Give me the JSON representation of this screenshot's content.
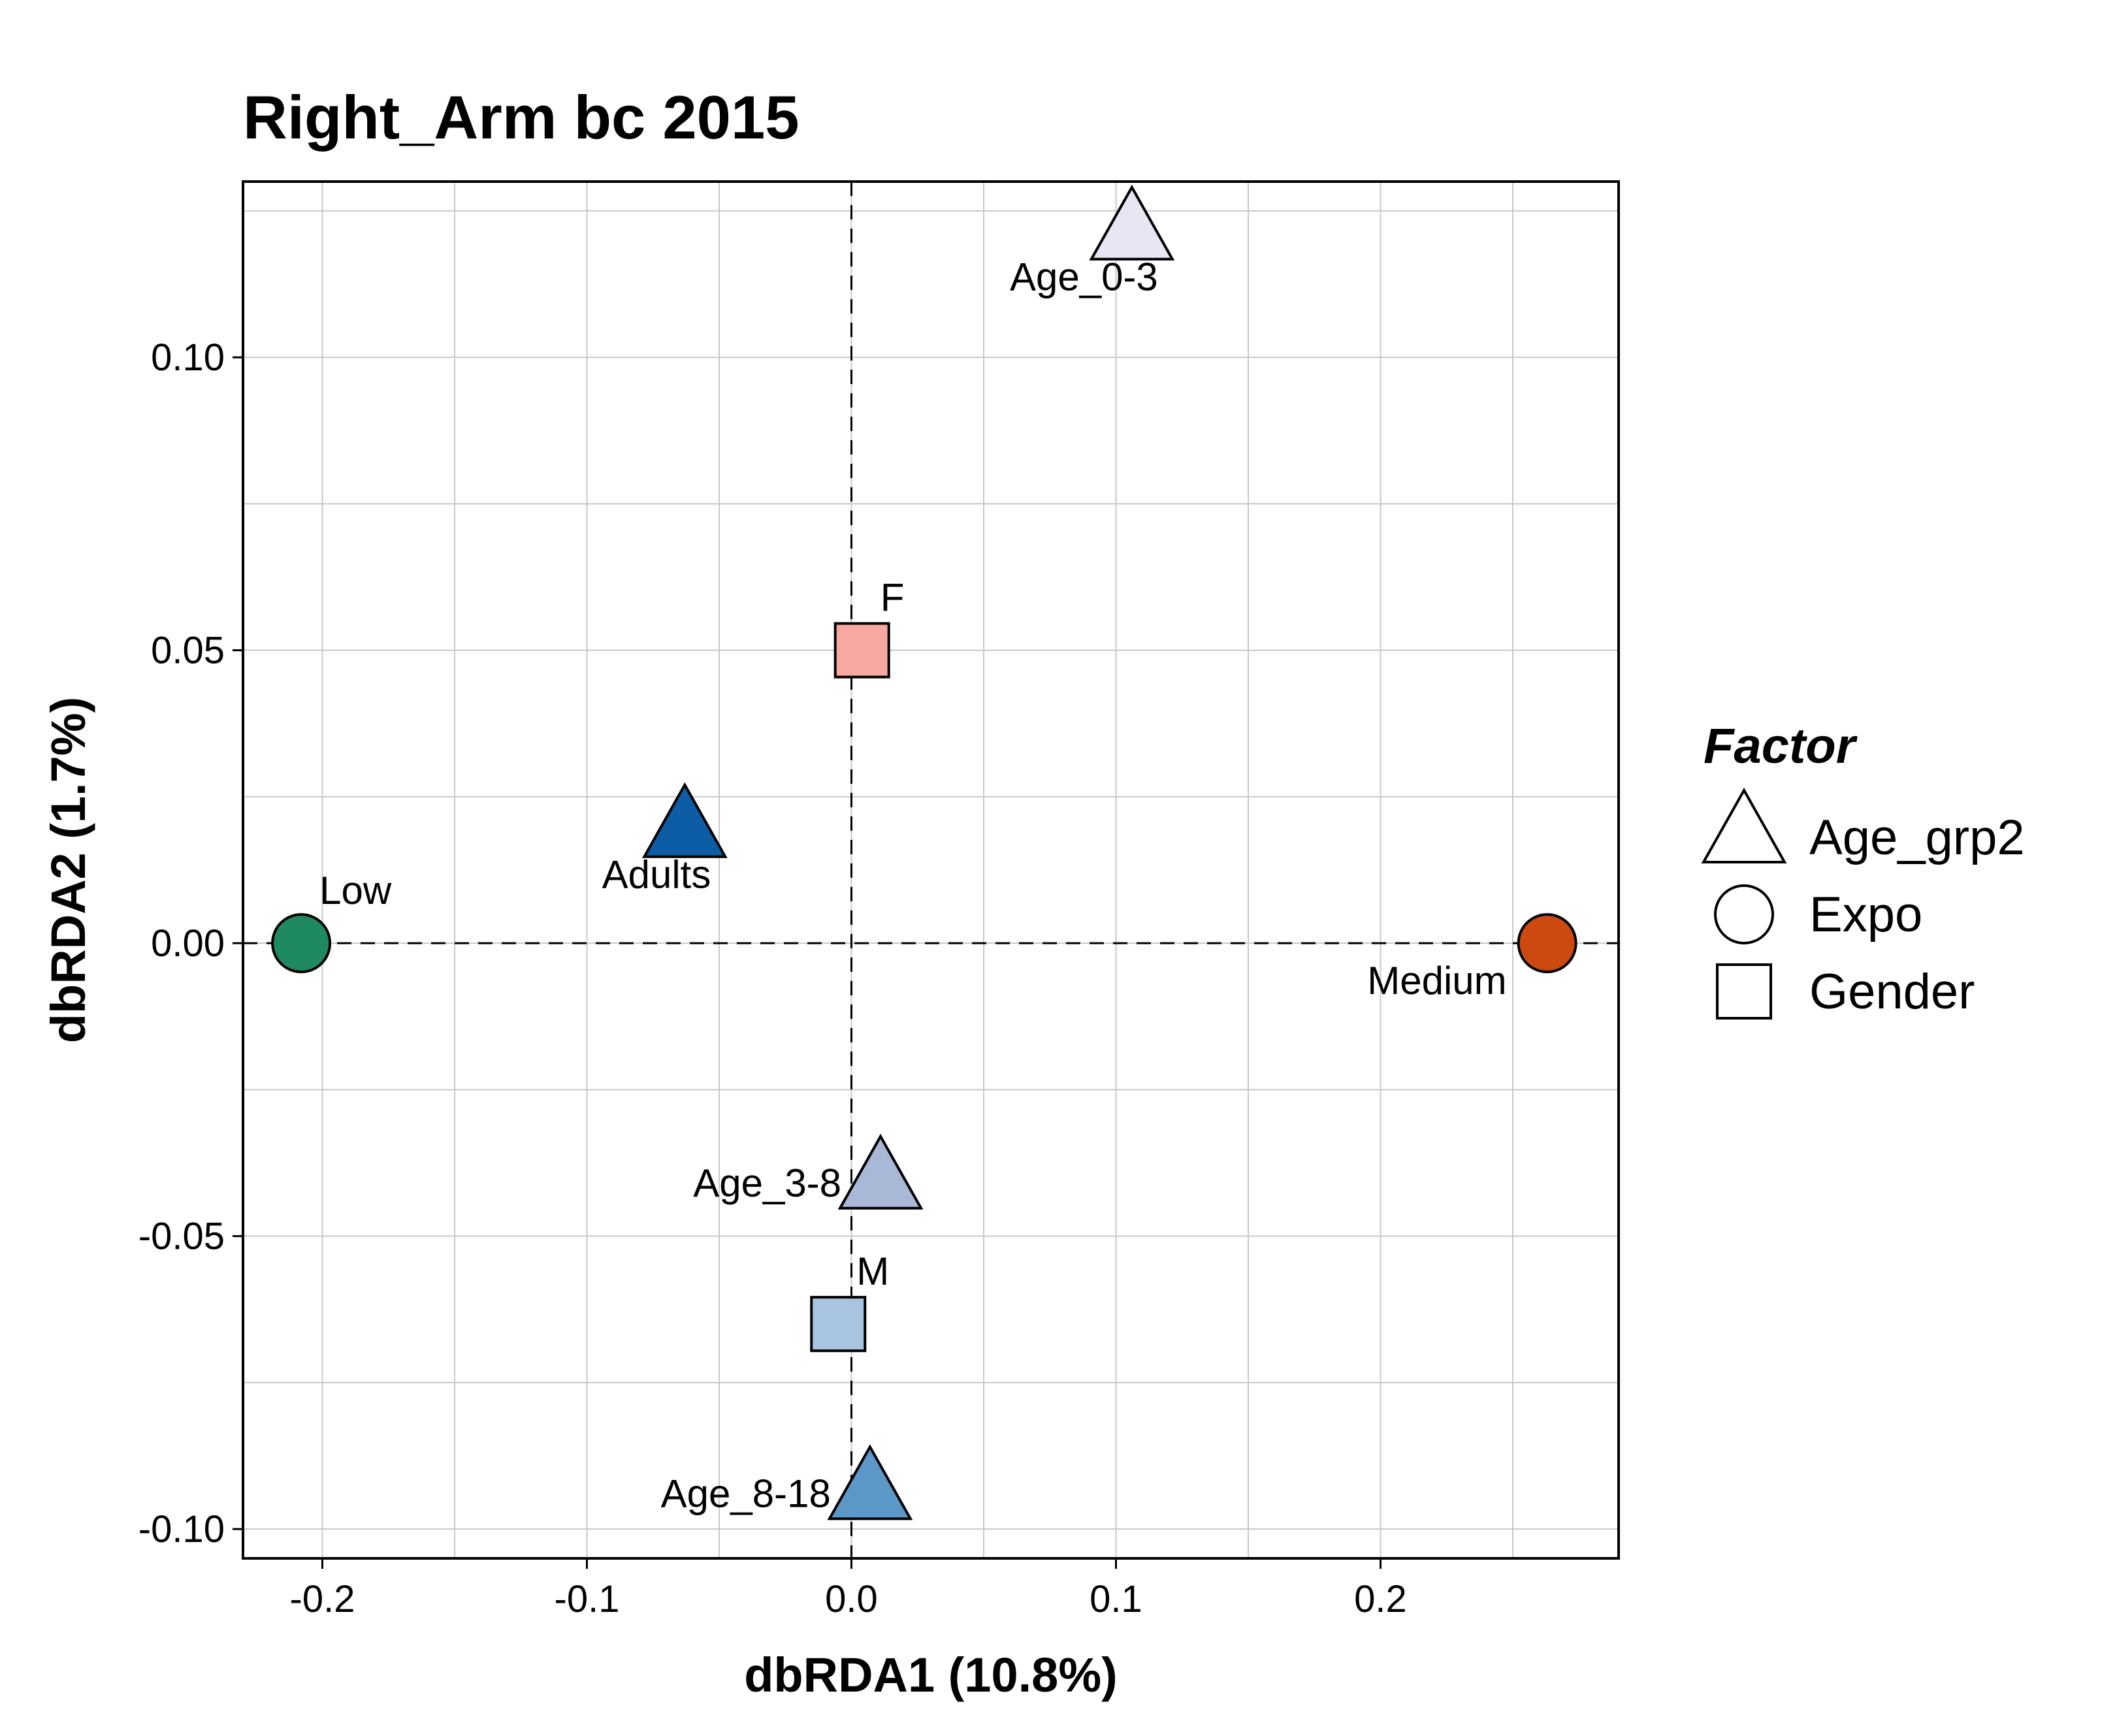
{
  "chart_data": {
    "type": "scatter",
    "title": "Right_Arm bc 2015",
    "xlabel": "dbRDA1 (10.8%)",
    "ylabel": "dbRDA2 (1.7%)",
    "xlim": [
      -0.23,
      0.29
    ],
    "ylim": [
      -0.105,
      0.13
    ],
    "x_ticks": [
      -0.2,
      -0.1,
      0.0,
      0.1,
      0.2
    ],
    "x_tick_labels": [
      "-0.2",
      "-0.1",
      "0.0",
      "0.1",
      "0.2"
    ],
    "y_ticks": [
      -0.1,
      -0.05,
      0.0,
      0.05,
      0.1
    ],
    "y_tick_labels": [
      "-0.10",
      "-0.05",
      "0.00",
      "0.05",
      "0.10"
    ],
    "grid": true,
    "reference_lines": {
      "x": 0,
      "y": 0,
      "style": "dashed"
    },
    "legend": {
      "title": "Factor",
      "placement": "right",
      "entries": [
        {
          "label": "Age_grp2",
          "shape": "triangle"
        },
        {
          "label": "Expo",
          "shape": "circle"
        },
        {
          "label": "Gender",
          "shape": "square"
        }
      ]
    },
    "points": [
      {
        "label": "Age_0-3",
        "factor": "Age_grp2",
        "shape": "triangle",
        "x": 0.106,
        "y": 0.121,
        "color": "#e8e6f2",
        "label_pos": "below-left"
      },
      {
        "label": "F",
        "factor": "Gender",
        "shape": "square",
        "x": 0.004,
        "y": 0.05,
        "color": "#f7a8a0",
        "label_pos": "above-right"
      },
      {
        "label": "Adults",
        "factor": "Age_grp2",
        "shape": "triangle",
        "x": -0.063,
        "y": 0.019,
        "color": "#0c5da5",
        "label_pos": "below-left"
      },
      {
        "label": "Low",
        "factor": "Expo",
        "shape": "circle",
        "x": -0.208,
        "y": 0.0,
        "color": "#1f8a60",
        "label_pos": "above-right"
      },
      {
        "label": "Medium",
        "factor": "Expo",
        "shape": "circle",
        "x": 0.263,
        "y": 0.0,
        "color": "#cc4a10",
        "label_pos": "below-left"
      },
      {
        "label": "Age_3-8",
        "factor": "Age_grp2",
        "shape": "triangle",
        "x": 0.011,
        "y": -0.041,
        "color": "#aab8d8",
        "label_pos": "left"
      },
      {
        "label": "M",
        "factor": "Gender",
        "shape": "square",
        "x": -0.005,
        "y": -0.065,
        "color": "#a9c4e0",
        "label_pos": "above-right"
      },
      {
        "label": "Age_8-18",
        "factor": "Age_grp2",
        "shape": "triangle",
        "x": 0.007,
        "y": -0.094,
        "color": "#5b98c8",
        "label_pos": "left"
      }
    ]
  }
}
